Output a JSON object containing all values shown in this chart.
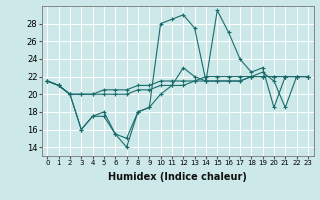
{
  "xlabel": "Humidex (Indice chaleur)",
  "bg_color": "#cce8e8",
  "line_color": "#1a6b6b",
  "grid_color": "#ffffff",
  "xlim": [
    -0.5,
    23.5
  ],
  "ylim": [
    13,
    30
  ],
  "yticks": [
    14,
    16,
    18,
    20,
    22,
    24,
    26,
    28
  ],
  "xticks": [
    0,
    1,
    2,
    3,
    4,
    5,
    6,
    7,
    8,
    9,
    10,
    11,
    12,
    13,
    14,
    15,
    16,
    17,
    18,
    19,
    20,
    21,
    22,
    23
  ],
  "series": [
    [
      21.5,
      21.0,
      20.0,
      16.0,
      17.5,
      18.0,
      15.5,
      14.0,
      18.0,
      18.5,
      28.0,
      28.5,
      29.0,
      27.5,
      21.5,
      29.5,
      27.0,
      24.0,
      22.5,
      23.0,
      18.5,
      22.0,
      22.0,
      22.0
    ],
    [
      21.5,
      21.0,
      20.0,
      20.0,
      20.0,
      20.5,
      20.5,
      20.5,
      21.0,
      21.0,
      21.5,
      21.5,
      21.5,
      21.5,
      22.0,
      22.0,
      22.0,
      22.0,
      22.0,
      22.0,
      22.0,
      22.0,
      22.0,
      22.0
    ],
    [
      21.5,
      21.0,
      20.0,
      20.0,
      20.0,
      20.0,
      20.0,
      20.0,
      20.5,
      20.5,
      21.0,
      21.0,
      21.0,
      21.5,
      21.5,
      21.5,
      21.5,
      21.5,
      22.0,
      22.0,
      22.0,
      22.0,
      22.0,
      22.0
    ],
    [
      21.5,
      21.0,
      20.0,
      16.0,
      17.5,
      17.5,
      15.5,
      15.0,
      18.0,
      18.5,
      20.0,
      21.0,
      23.0,
      22.0,
      21.5,
      21.5,
      21.5,
      21.5,
      22.0,
      22.5,
      21.5,
      18.5,
      22.0,
      22.0
    ]
  ]
}
